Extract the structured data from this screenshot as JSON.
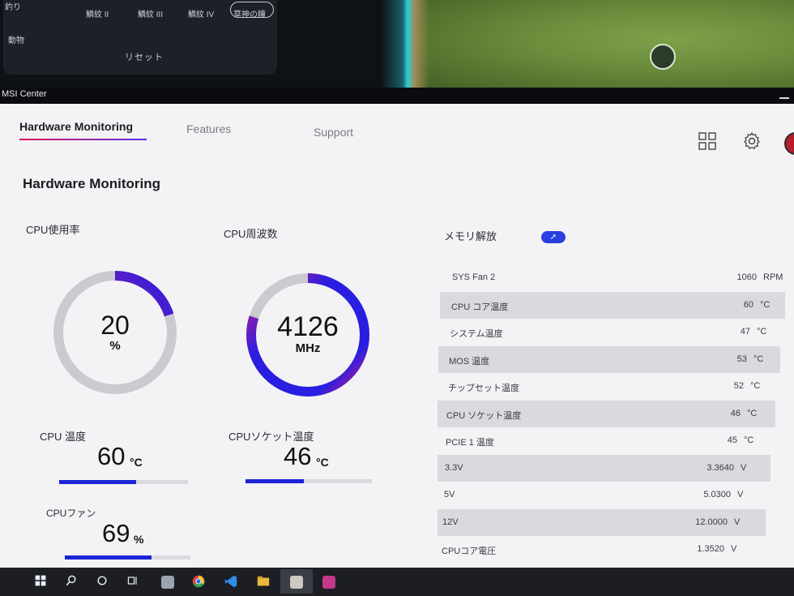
{
  "game_overlay": {
    "side_labels": [
      "釣り",
      "動物"
    ],
    "filters": [
      "鱗紋 II",
      "鱗紋 III",
      "鱗紋 IV",
      "草神の瞳"
    ],
    "reset_label": "リセット"
  },
  "window": {
    "title": "MSI Center"
  },
  "nav": {
    "tabs": [
      "Hardware Monitoring",
      "Features",
      "Support"
    ],
    "active": "Hardware Monitoring"
  },
  "icons": {
    "grid": "grid-icon",
    "settings": "gear-icon",
    "avatar": "avatar"
  },
  "main": {
    "title": "Hardware Monitoring"
  },
  "cpu_usage": {
    "label": "CPU使用率",
    "value": "20",
    "unit": "%",
    "fraction": 0.2
  },
  "cpu_freq": {
    "label": "CPU周波数",
    "value": "4126",
    "unit": "MHz",
    "fraction": 0.8
  },
  "memory": {
    "label": "メモリ解放",
    "button_icon": "rocket-icon"
  },
  "cpu_temp": {
    "label": "CPU 温度",
    "value": "60",
    "unit": "°C",
    "fraction": 0.6
  },
  "cpu_socket_temp": {
    "label": "CPUソケット温度",
    "value": "46",
    "unit": "°C",
    "fraction": 0.46
  },
  "cpu_fan": {
    "label": "CPUファン",
    "value": "69",
    "unit": "%",
    "fraction": 0.69
  },
  "sensors": [
    {
      "name": "SYS Fan 2",
      "value": "1060",
      "unit": "RPM"
    },
    {
      "name": "CPU コア温度",
      "value": "60",
      "unit": "°C"
    },
    {
      "name": "システム温度",
      "value": "47",
      "unit": "°C"
    },
    {
      "name": "MOS 温度",
      "value": "53",
      "unit": "°C"
    },
    {
      "name": "チップセット温度",
      "value": "52",
      "unit": "°C"
    },
    {
      "name": "CPU ソケット温度",
      "value": "46",
      "unit": "°C"
    },
    {
      "name": "PCIE 1 温度",
      "value": "45",
      "unit": "°C"
    },
    {
      "name": "3.3V",
      "value": "3.3640",
      "unit": "V"
    },
    {
      "name": "5V",
      "value": "5.0300",
      "unit": "V"
    },
    {
      "name": "12V",
      "value": "12.0000",
      "unit": "V"
    },
    {
      "name": "CPUコア電圧",
      "value": "1.3520",
      "unit": "V"
    }
  ],
  "taskbar": {
    "items": [
      "windows-icon",
      "search-icon",
      "cortana-icon",
      "task-view-icon",
      "app-icon",
      "chrome-icon",
      "vscode-icon",
      "file-explorer-icon",
      "game-icon",
      "msi-center-icon"
    ]
  },
  "colors": {
    "accent": "#1a25d6",
    "gauge_start": "#d11d8a",
    "gauge_end": "#2a1ee0",
    "track": "#c9cbd0"
  }
}
